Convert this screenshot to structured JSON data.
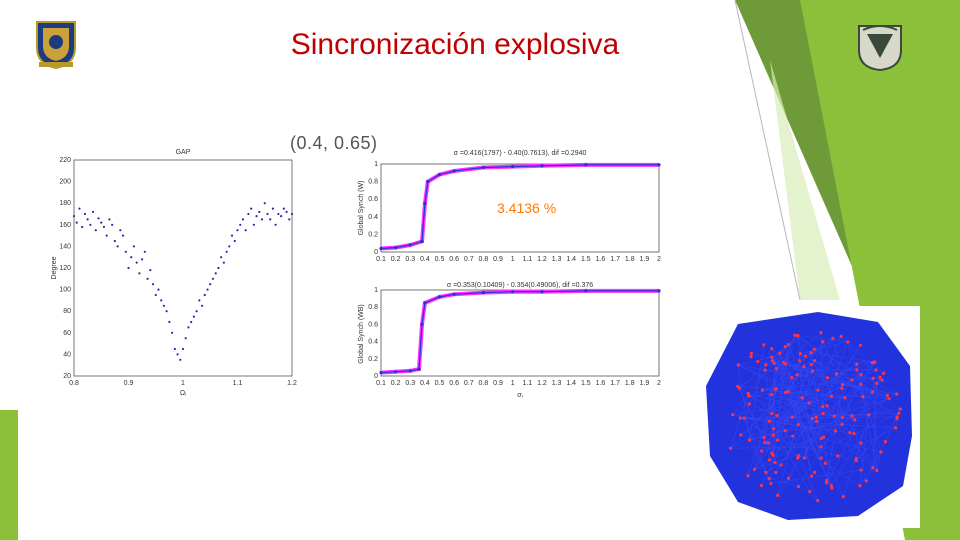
{
  "slide": {
    "title": "Sincronización explosiva",
    "params_label": "(0.4,  0.65)",
    "percent_label": "3.4136  %"
  },
  "logos": {
    "left": "university-seal",
    "right": "unam-seal"
  },
  "colors": {
    "title": "#c00000",
    "green_dark": "#6e9a3a",
    "green_light": "#9dc33a",
    "scatter_points": "#2a2aa8",
    "magenta": "#ff33ff",
    "network_blue": "#2233dd",
    "network_red": "#ff3344"
  },
  "chart_data": [
    {
      "type": "scatter",
      "title": "GAP",
      "xlabel": "Ωᵢ",
      "ylabel": "Degree",
      "xlim": [
        0.8,
        1.2
      ],
      "ylim": [
        20,
        220
      ],
      "xticks": [
        "0.8",
        "0.9",
        "1",
        "1.1",
        "1.2"
      ],
      "yticks": [
        "220",
        "200",
        "180",
        "160",
        "140",
        "120",
        "100",
        "80",
        "60",
        "40",
        "20"
      ],
      "series": [
        {
          "x": [
            0.8,
            0.805,
            0.81,
            0.815,
            0.82,
            0.825,
            0.83,
            0.835,
            0.84,
            0.845,
            0.85,
            0.855,
            0.86,
            0.865,
            0.87,
            0.875,
            0.88,
            0.885,
            0.89,
            0.895,
            0.9,
            0.905,
            0.91,
            0.915,
            0.92,
            0.925,
            0.93,
            0.935,
            0.94,
            0.945,
            0.95,
            0.955,
            0.96,
            0.965,
            0.97,
            0.975,
            0.98,
            0.985,
            0.99,
            0.995,
            1.0,
            1.005,
            1.01,
            1.015,
            1.02,
            1.025,
            1.03,
            1.035,
            1.04,
            1.045,
            1.05,
            1.055,
            1.06,
            1.065,
            1.07,
            1.075,
            1.08,
            1.085,
            1.09,
            1.095,
            1.1,
            1.105,
            1.11,
            1.115,
            1.12,
            1.125,
            1.13,
            1.135,
            1.14,
            1.145,
            1.15,
            1.155,
            1.16,
            1.165,
            1.17,
            1.175,
            1.18,
            1.185,
            1.19,
            1.195,
            1.2
          ],
          "y": [
            168,
            162,
            175,
            158,
            170,
            165,
            160,
            172,
            155,
            166,
            162,
            158,
            150,
            165,
            160,
            145,
            140,
            155,
            150,
            135,
            120,
            130,
            140,
            125,
            115,
            128,
            135,
            110,
            118,
            105,
            95,
            100,
            90,
            85,
            80,
            70,
            60,
            45,
            40,
            35,
            45,
            55,
            65,
            70,
            75,
            80,
            90,
            85,
            95,
            100,
            105,
            110,
            115,
            120,
            130,
            125,
            135,
            140,
            150,
            145,
            155,
            160,
            165,
            155,
            170,
            175,
            160,
            168,
            172,
            165,
            180,
            170,
            165,
            175,
            160,
            170,
            168,
            175,
            172,
            165,
            170
          ]
        }
      ]
    },
    {
      "type": "line",
      "title": "σ =0.416(1797) - 0.40(0.7613), dif =0.2940",
      "xlabel": "",
      "ylabel": "Global Synch (W)",
      "xlim": [
        0.1,
        2
      ],
      "ylim": [
        0,
        1
      ],
      "xticks": [
        "0.1",
        "0.2",
        "0.3",
        "0.4",
        "0.5",
        "0.6",
        "0.7",
        "0.8",
        "0.9",
        "1",
        "1.1",
        "1.2",
        "1.3",
        "1.4",
        "1.5",
        "1.6",
        "1.7",
        "1.8",
        "1.9",
        "2"
      ],
      "yticks": [
        "1",
        "0.8",
        "0.6",
        "0.4",
        "0.2",
        "0"
      ],
      "series": [
        {
          "x": [
            0.1,
            0.2,
            0.3,
            0.38,
            0.4,
            0.42,
            0.5,
            0.6,
            0.8,
            1.0,
            1.2,
            1.5,
            2.0
          ],
          "y": [
            0.04,
            0.05,
            0.08,
            0.12,
            0.55,
            0.8,
            0.88,
            0.92,
            0.96,
            0.97,
            0.98,
            0.99,
            0.99
          ]
        }
      ]
    },
    {
      "type": "line",
      "title": "σ =0.353(0.10409) - 0.354(0.49006), dif =0.376",
      "xlabel": "σᵢ",
      "ylabel": "Global Synch (WB)",
      "xlim": [
        0.1,
        2
      ],
      "ylim": [
        0,
        1
      ],
      "xticks": [
        "0.1",
        "0.2",
        "0.3",
        "0.4",
        "0.5",
        "0.6",
        "0.7",
        "0.8",
        "0.9",
        "1",
        "1.1",
        "1.2",
        "1.3",
        "1.4",
        "1.5",
        "1.6",
        "1.7",
        "1.8",
        "1.9",
        "2"
      ],
      "yticks": [
        "1",
        "0.8",
        "0.6",
        "0.4",
        "0.2",
        "0"
      ],
      "series": [
        {
          "x": [
            0.1,
            0.2,
            0.3,
            0.36,
            0.38,
            0.4,
            0.5,
            0.6,
            0.8,
            1.0,
            1.2,
            1.5,
            2.0
          ],
          "y": [
            0.04,
            0.05,
            0.06,
            0.08,
            0.6,
            0.85,
            0.92,
            0.95,
            0.97,
            0.98,
            0.98,
            0.99,
            0.99
          ]
        }
      ]
    }
  ]
}
